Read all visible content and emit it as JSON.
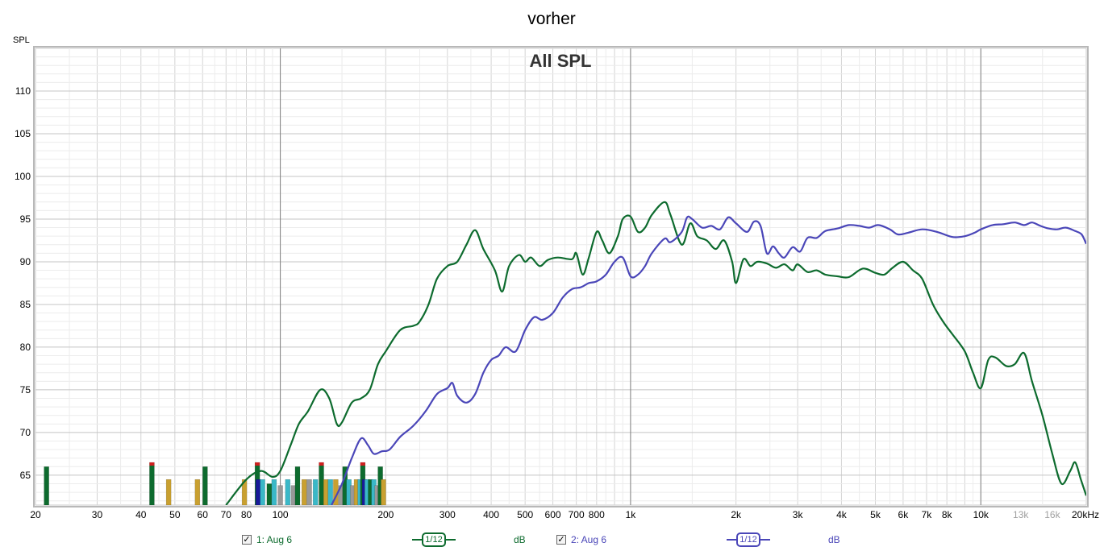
{
  "window": {
    "title": "vorher"
  },
  "chart_data": {
    "type": "line",
    "title": "All SPL",
    "ylabel": "SPL",
    "xlabel": "",
    "x_scale": "log",
    "xlim": [
      20,
      20000
    ],
    "ylim": [
      61.5,
      115
    ],
    "grid": true,
    "x_ticks": [
      {
        "v": 20,
        "label": "20"
      },
      {
        "v": 30,
        "label": "30"
      },
      {
        "v": 40,
        "label": "40"
      },
      {
        "v": 50,
        "label": "50"
      },
      {
        "v": 60,
        "label": "60"
      },
      {
        "v": 70,
        "label": "70"
      },
      {
        "v": 80,
        "label": "80"
      },
      {
        "v": 100,
        "label": "100"
      },
      {
        "v": 200,
        "label": "200"
      },
      {
        "v": 300,
        "label": "300"
      },
      {
        "v": 400,
        "label": "400"
      },
      {
        "v": 500,
        "label": "500"
      },
      {
        "v": 600,
        "label": "600"
      },
      {
        "v": 700,
        "label": "700"
      },
      {
        "v": 800,
        "label": "800"
      },
      {
        "v": 1000,
        "label": "1k"
      },
      {
        "v": 2000,
        "label": "2k"
      },
      {
        "v": 3000,
        "label": "3k"
      },
      {
        "v": 4000,
        "label": "4k"
      },
      {
        "v": 5000,
        "label": "5k"
      },
      {
        "v": 6000,
        "label": "6k"
      },
      {
        "v": 7000,
        "label": "7k"
      },
      {
        "v": 8000,
        "label": "8k"
      },
      {
        "v": 10000,
        "label": "10k"
      },
      {
        "v": 13000,
        "label": "13k",
        "faded": true
      },
      {
        "v": 16000,
        "label": "16k",
        "faded": true
      },
      {
        "v": 20000,
        "label": "20kHz"
      }
    ],
    "y_ticks": [
      65,
      70,
      75,
      80,
      85,
      90,
      95,
      100,
      105,
      110
    ],
    "series": [
      {
        "name": "1: Aug 6",
        "color": "#0d6b2e",
        "points": [
          [
            70,
            61.5
          ],
          [
            80,
            64.5
          ],
          [
            88,
            65.5
          ],
          [
            95,
            64.8
          ],
          [
            100,
            65.5
          ],
          [
            107,
            68.5
          ],
          [
            113,
            71
          ],
          [
            120,
            72.5
          ],
          [
            130,
            75
          ],
          [
            138,
            74
          ],
          [
            145,
            71
          ],
          [
            150,
            71.2
          ],
          [
            160,
            73.5
          ],
          [
            170,
            74
          ],
          [
            180,
            75
          ],
          [
            190,
            78
          ],
          [
            200,
            79.5
          ],
          [
            220,
            82
          ],
          [
            240,
            82.5
          ],
          [
            250,
            83
          ],
          [
            265,
            85
          ],
          [
            280,
            88
          ],
          [
            300,
            89.5
          ],
          [
            320,
            90
          ],
          [
            340,
            92
          ],
          [
            360,
            93.7
          ],
          [
            380,
            91.5
          ],
          [
            410,
            89
          ],
          [
            430,
            86.5
          ],
          [
            450,
            89.5
          ],
          [
            480,
            90.8
          ],
          [
            500,
            90
          ],
          [
            520,
            90.5
          ],
          [
            550,
            89.5
          ],
          [
            580,
            90.2
          ],
          [
            620,
            90.5
          ],
          [
            680,
            90.3
          ],
          [
            700,
            91
          ],
          [
            730,
            88.5
          ],
          [
            760,
            90.5
          ],
          [
            800,
            93.5
          ],
          [
            830,
            92.5
          ],
          [
            870,
            91
          ],
          [
            920,
            93
          ],
          [
            950,
            95
          ],
          [
            1000,
            95.3
          ],
          [
            1050,
            93.5
          ],
          [
            1100,
            94
          ],
          [
            1150,
            95.5
          ],
          [
            1250,
            97
          ],
          [
            1300,
            95.5
          ],
          [
            1400,
            92
          ],
          [
            1480,
            94.5
          ],
          [
            1550,
            93
          ],
          [
            1650,
            92.5
          ],
          [
            1750,
            91.5
          ],
          [
            1850,
            92.5
          ],
          [
            1950,
            90
          ],
          [
            2000,
            87.5
          ],
          [
            2100,
            90.3
          ],
          [
            2200,
            89.5
          ],
          [
            2300,
            90
          ],
          [
            2450,
            89.8
          ],
          [
            2600,
            89.3
          ],
          [
            2750,
            89.7
          ],
          [
            2900,
            89
          ],
          [
            3000,
            89.7
          ],
          [
            3200,
            88.8
          ],
          [
            3400,
            89
          ],
          [
            3600,
            88.5
          ],
          [
            3900,
            88.3
          ],
          [
            4200,
            88.2
          ],
          [
            4600,
            89.2
          ],
          [
            5000,
            88.7
          ],
          [
            5300,
            88.5
          ],
          [
            5600,
            89.3
          ],
          [
            6000,
            90
          ],
          [
            6400,
            89
          ],
          [
            6800,
            88
          ],
          [
            7300,
            85
          ],
          [
            7800,
            83
          ],
          [
            8300,
            81.5
          ],
          [
            9000,
            79.5
          ],
          [
            9500,
            77
          ],
          [
            10000,
            75.2
          ],
          [
            10500,
            78.5
          ],
          [
            11000,
            78.8
          ],
          [
            11800,
            77.8
          ],
          [
            12500,
            78
          ],
          [
            13300,
            79.3
          ],
          [
            14000,
            76
          ],
          [
            15000,
            72
          ],
          [
            16000,
            67.5
          ],
          [
            17000,
            64
          ],
          [
            18000,
            65.5
          ],
          [
            18600,
            66.5
          ],
          [
            19300,
            64.5
          ],
          [
            20000,
            62.6
          ]
        ]
      },
      {
        "name": "2: Aug 6",
        "color": "#4a46b8",
        "points": [
          [
            140,
            61.5
          ],
          [
            150,
            64
          ],
          [
            160,
            67
          ],
          [
            170,
            69.3
          ],
          [
            178,
            68.5
          ],
          [
            185,
            67.5
          ],
          [
            195,
            67.8
          ],
          [
            205,
            68
          ],
          [
            220,
            69.5
          ],
          [
            240,
            70.8
          ],
          [
            260,
            72.5
          ],
          [
            280,
            74.5
          ],
          [
            300,
            75.2
          ],
          [
            310,
            75.8
          ],
          [
            320,
            74.3
          ],
          [
            340,
            73.5
          ],
          [
            360,
            74.5
          ],
          [
            380,
            77
          ],
          [
            400,
            78.5
          ],
          [
            420,
            79
          ],
          [
            440,
            80
          ],
          [
            470,
            79.5
          ],
          [
            500,
            82
          ],
          [
            530,
            83.5
          ],
          [
            560,
            83.2
          ],
          [
            600,
            84
          ],
          [
            640,
            85.8
          ],
          [
            680,
            86.8
          ],
          [
            720,
            87
          ],
          [
            760,
            87.5
          ],
          [
            800,
            87.7
          ],
          [
            850,
            88.5
          ],
          [
            900,
            90
          ],
          [
            950,
            90.5
          ],
          [
            1000,
            88.3
          ],
          [
            1050,
            88.5
          ],
          [
            1100,
            89.5
          ],
          [
            1150,
            91
          ],
          [
            1250,
            92.7
          ],
          [
            1300,
            92.3
          ],
          [
            1400,
            93.5
          ],
          [
            1450,
            95.2
          ],
          [
            1500,
            95
          ],
          [
            1600,
            94
          ],
          [
            1700,
            94.2
          ],
          [
            1800,
            93.8
          ],
          [
            1900,
            95.2
          ],
          [
            2000,
            94.5
          ],
          [
            2150,
            93.5
          ],
          [
            2250,
            94.7
          ],
          [
            2350,
            94.2
          ],
          [
            2450,
            91
          ],
          [
            2550,
            91.8
          ],
          [
            2650,
            91
          ],
          [
            2750,
            90.5
          ],
          [
            2900,
            91.7
          ],
          [
            3050,
            91.2
          ],
          [
            3200,
            92.8
          ],
          [
            3400,
            92.8
          ],
          [
            3600,
            93.6
          ],
          [
            3900,
            93.9
          ],
          [
            4200,
            94.3
          ],
          [
            4500,
            94.2
          ],
          [
            4800,
            94.0
          ],
          [
            5100,
            94.3
          ],
          [
            5500,
            93.8
          ],
          [
            5800,
            93.2
          ],
          [
            6200,
            93.4
          ],
          [
            6800,
            93.8
          ],
          [
            7500,
            93.5
          ],
          [
            8300,
            92.9
          ],
          [
            9000,
            93
          ],
          [
            9600,
            93.4
          ],
          [
            10000,
            93.8
          ],
          [
            10800,
            94.3
          ],
          [
            11600,
            94.4
          ],
          [
            12500,
            94.6
          ],
          [
            13300,
            94.3
          ],
          [
            14000,
            94.6
          ],
          [
            14800,
            94.2
          ],
          [
            15600,
            93.9
          ],
          [
            16500,
            93.8
          ],
          [
            17500,
            94
          ],
          [
            18600,
            93.6
          ],
          [
            19400,
            93.2
          ],
          [
            20000,
            92.1
          ]
        ]
      }
    ],
    "peak_markers": [
      {
        "f": 21.5,
        "h": 66,
        "c": "#0d6b2e"
      },
      {
        "f": 43,
        "h": 66.5,
        "c": "#0d6b2e",
        "tip": true
      },
      {
        "f": 48,
        "h": 64.5,
        "c": "#c9a030"
      },
      {
        "f": 58,
        "h": 64.5,
        "c": "#c9a030"
      },
      {
        "f": 61,
        "h": 66,
        "c": "#0d6b2e"
      },
      {
        "f": 79,
        "h": 64.5,
        "c": "#c9a030"
      },
      {
        "f": 86,
        "h": 66.5,
        "c": "#0d6b2e",
        "tip": true
      },
      {
        "f": 86.5,
        "h": 64.5,
        "c": "#1a1a9a"
      },
      {
        "f": 89,
        "h": 64.5,
        "c": "#3ab8c8"
      },
      {
        "f": 93,
        "h": 64,
        "c": "#0d6b2e"
      },
      {
        "f": 96,
        "h": 64.5,
        "c": "#3ab8c8"
      },
      {
        "f": 100,
        "h": 63.8,
        "c": "#999999"
      },
      {
        "f": 105,
        "h": 64.5,
        "c": "#3ab8c8"
      },
      {
        "f": 109,
        "h": 63.8,
        "c": "#999999"
      },
      {
        "f": 112,
        "h": 66,
        "c": "#0d6b2e"
      },
      {
        "f": 117,
        "h": 64.5,
        "c": "#c9a030"
      },
      {
        "f": 121,
        "h": 64.5,
        "c": "#999999"
      },
      {
        "f": 126,
        "h": 64.5,
        "c": "#3ab8c8"
      },
      {
        "f": 131,
        "h": 66.5,
        "c": "#0d6b2e",
        "tip": true
      },
      {
        "f": 135,
        "h": 64.5,
        "c": "#c9a030"
      },
      {
        "f": 139,
        "h": 64.5,
        "c": "#3ab8c8"
      },
      {
        "f": 144,
        "h": 64.5,
        "c": "#c9a030"
      },
      {
        "f": 149,
        "h": 63.8,
        "c": "#999999"
      },
      {
        "f": 153,
        "h": 66,
        "c": "#0d6b2e"
      },
      {
        "f": 157,
        "h": 64.5,
        "c": "#3ab8c8"
      },
      {
        "f": 161,
        "h": 63.8,
        "c": "#999999"
      },
      {
        "f": 165,
        "h": 64.5,
        "c": "#c9a030"
      },
      {
        "f": 169,
        "h": 64.5,
        "c": "#3ab8c8"
      },
      {
        "f": 172,
        "h": 66.5,
        "c": "#0d6b2e",
        "tip": true
      },
      {
        "f": 174,
        "h": 64.5,
        "c": "#1a1a9a"
      },
      {
        "f": 177,
        "h": 64.5,
        "c": "#3ab8c8"
      },
      {
        "f": 181,
        "h": 64.5,
        "c": "#0d6b2e"
      },
      {
        "f": 185,
        "h": 64.5,
        "c": "#3ab8c8"
      },
      {
        "f": 189,
        "h": 63.8,
        "c": "#999999"
      },
      {
        "f": 193,
        "h": 66,
        "c": "#0d6b2e"
      },
      {
        "f": 197,
        "h": 64.5,
        "c": "#c9a030"
      }
    ]
  },
  "legend": [
    {
      "label": "1: Aug 6",
      "checked": true,
      "smoothing": "1/12",
      "unit": "dB",
      "color": "#0d6b2e"
    },
    {
      "label": "2: Aug 6",
      "checked": true,
      "smoothing": "1/12",
      "unit": "dB",
      "color": "#4a46b8"
    }
  ]
}
